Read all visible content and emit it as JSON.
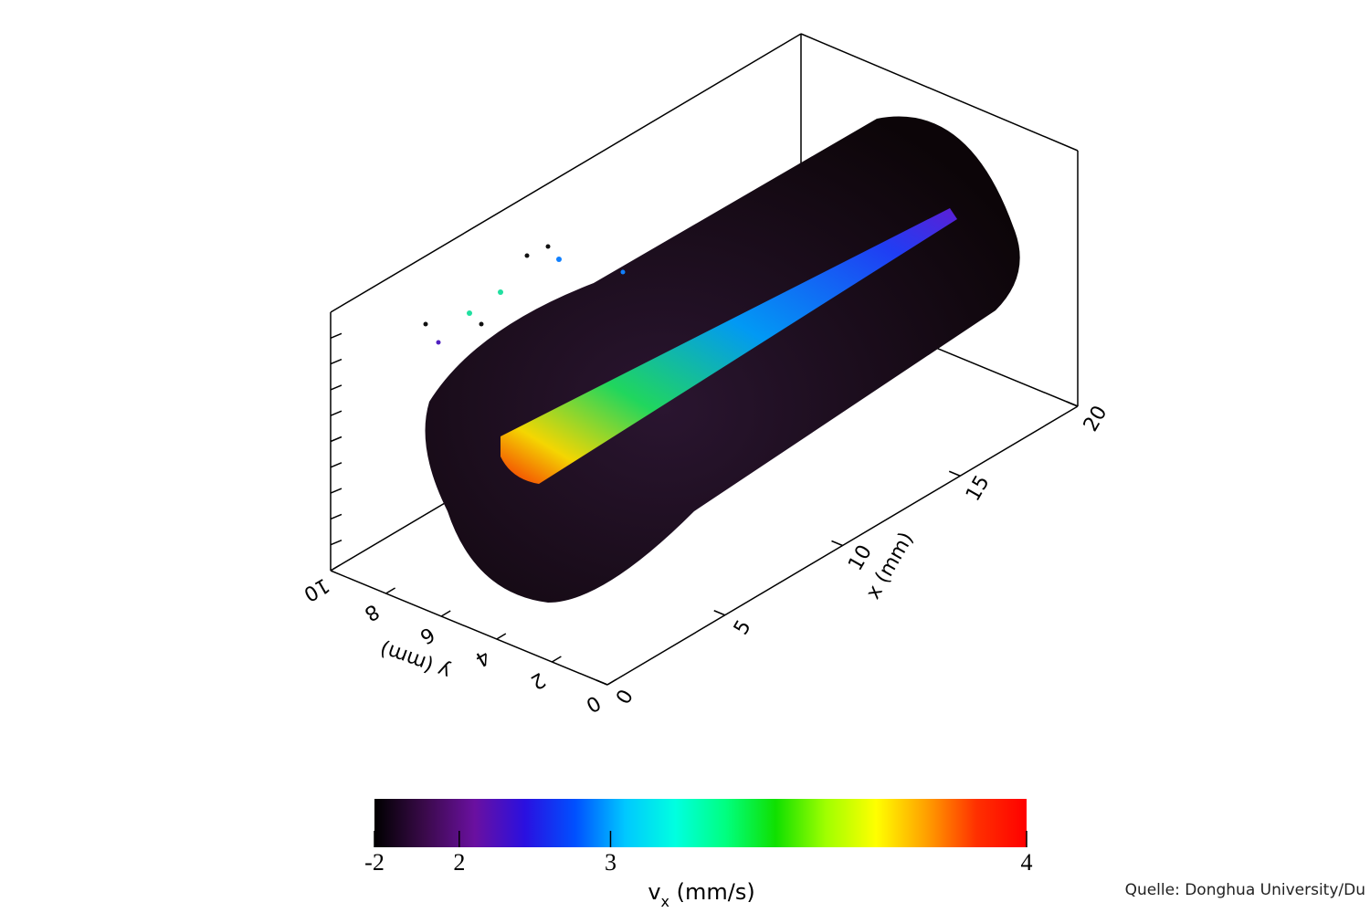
{
  "chart_data": {
    "type": "scatter3d",
    "x_label": "x (mm)",
    "y_label": "y (mm)",
    "xlim": [
      0,
      20
    ],
    "xticks": [
      0,
      5,
      10,
      15,
      20
    ],
    "ylim": [
      0,
      10
    ],
    "yticks": [
      0,
      2,
      4,
      6,
      8,
      10
    ],
    "colorbar": {
      "label": "v",
      "label_sub": "x",
      "label_unit": " (mm/s)",
      "ticks": [
        -2,
        2,
        3,
        4
      ],
      "colors": [
        "#000000",
        "#3a0a4a",
        "#6a10a0",
        "#2a10e0",
        "#0050ff",
        "#00c8ff",
        "#00ffe0",
        "#00ff80",
        "#10e000",
        "#a0ff00",
        "#ffff00",
        "#ffa000",
        "#ff3000",
        "#ff0000"
      ]
    }
  },
  "source": "Quelle: Donghua University/Du"
}
